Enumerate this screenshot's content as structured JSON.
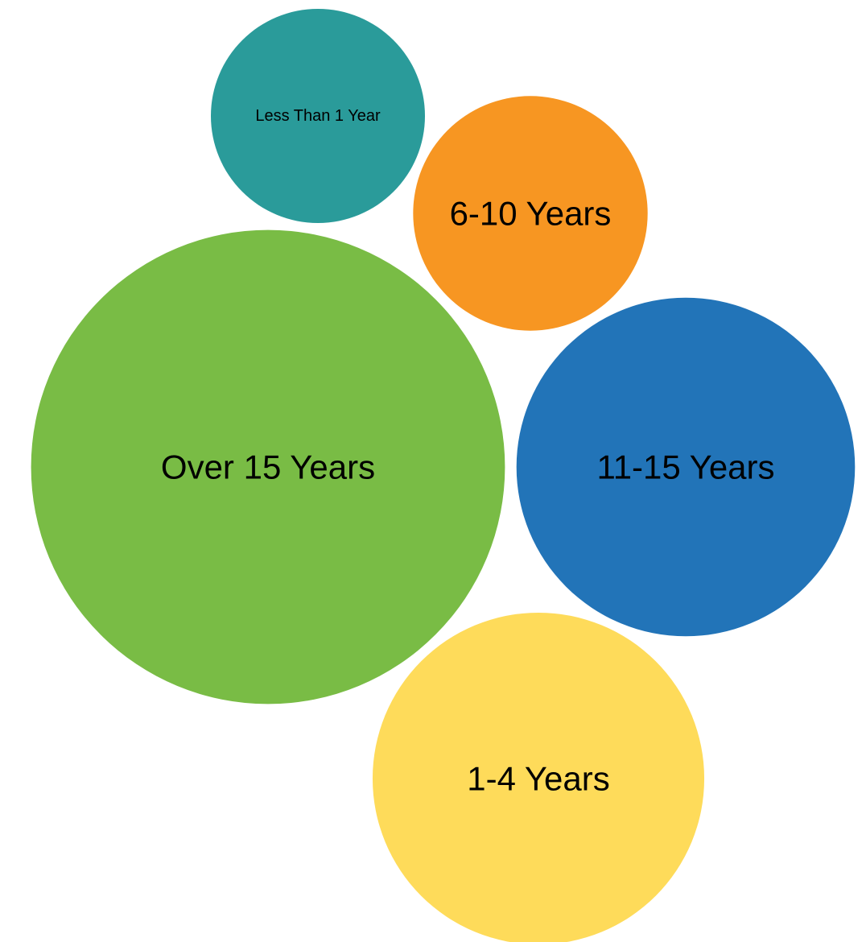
{
  "chart_data": {
    "type": "bubble",
    "title": "",
    "legend": "none",
    "series": [
      {
        "name": "Less Than 1 Year",
        "value": 1.0,
        "color": "#2a9b9a"
      },
      {
        "name": "6-10 Years",
        "value": 1.2,
        "color": "#f79622"
      },
      {
        "name": "Over 15 Years",
        "value": 4.9,
        "color": "#79bc45"
      },
      {
        "name": "11-15 Years",
        "value": 2.5,
        "color": "#2274b8"
      },
      {
        "name": "1-4 Years",
        "value": 2.4,
        "color": "#fedb5a"
      }
    ]
  }
}
